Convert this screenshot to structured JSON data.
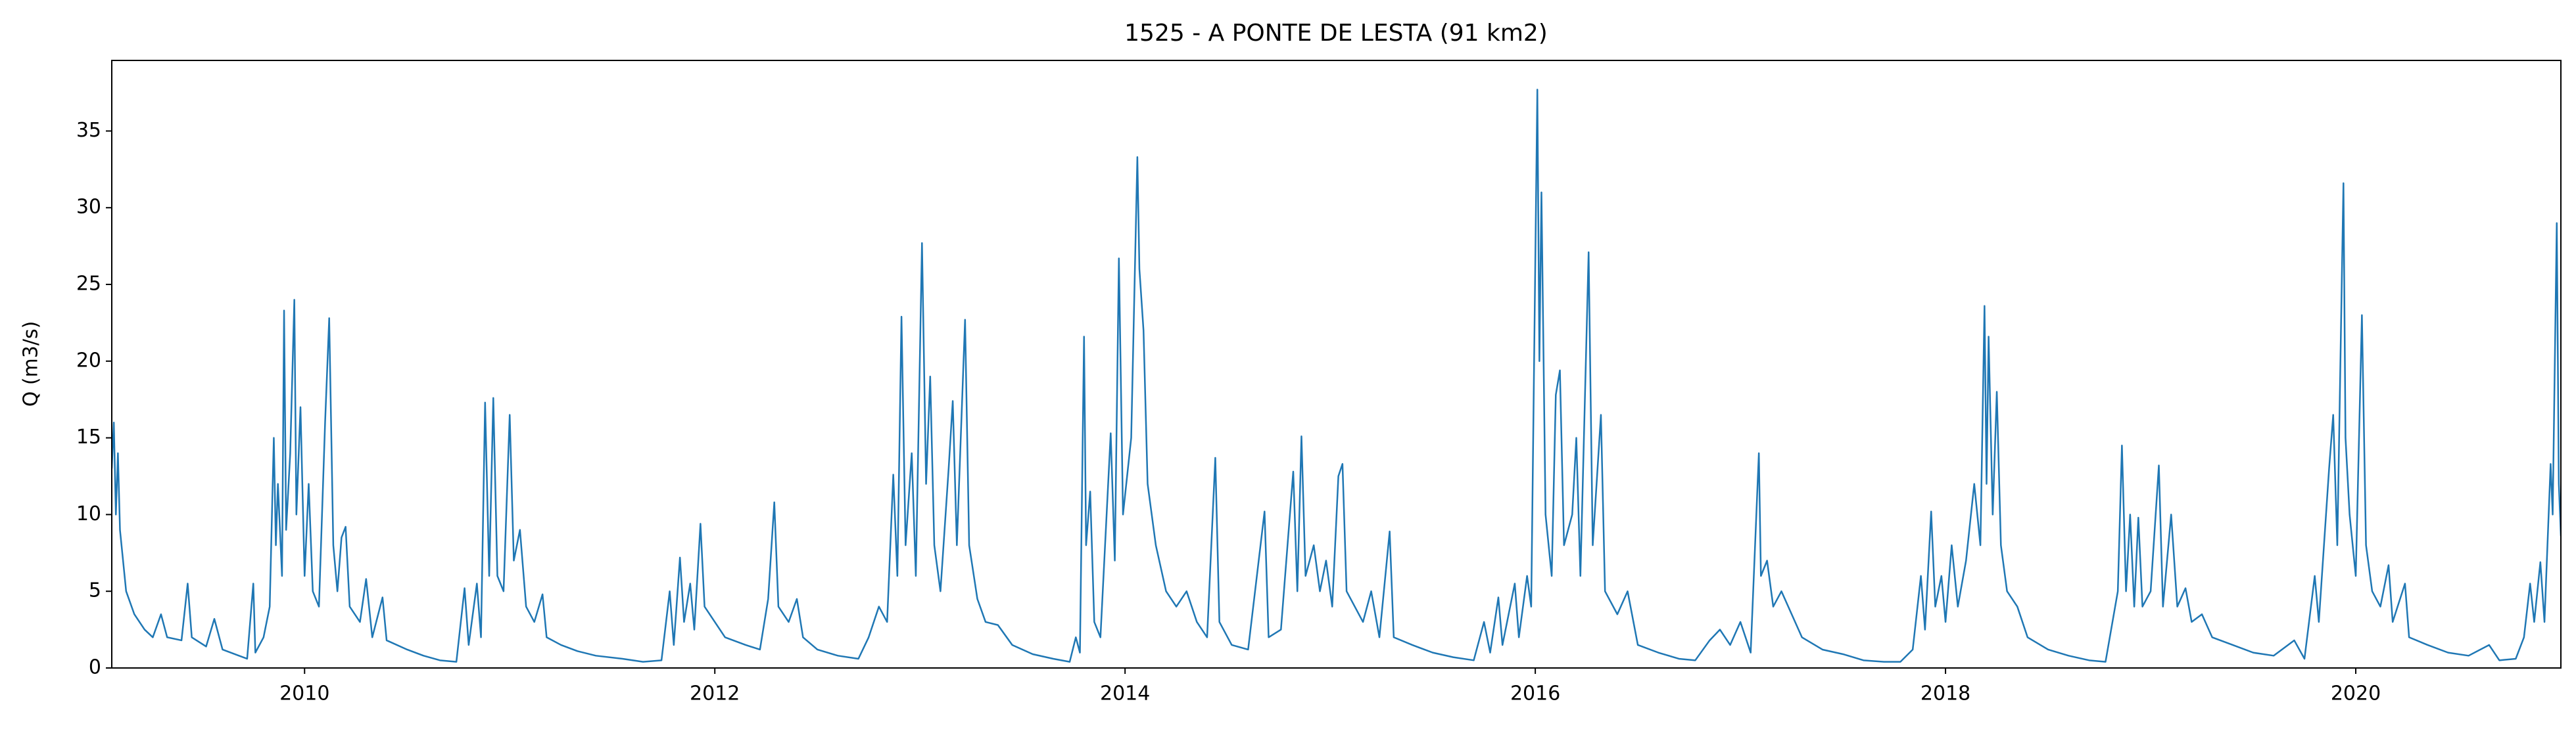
{
  "chart_data": {
    "type": "line",
    "title": "1525 - A PONTE DE LESTA (91 km2)",
    "y_label": "Q (m3/s)",
    "xlim": [
      2009.06,
      2021.0
    ],
    "xticks": [
      2010,
      2012,
      2014,
      2016,
      2018,
      2020
    ],
    "ylim": [
      0,
      39.6
    ],
    "yticks": [
      0,
      5,
      10,
      15,
      20,
      25,
      30,
      35
    ],
    "grid": false,
    "series": [
      {
        "color": "#1f77b4",
        "x": [
          2009.06,
          2009.07,
          2009.08,
          2009.09,
          2009.1,
          2009.13,
          2009.17,
          2009.22,
          2009.26,
          2009.3,
          2009.33,
          2009.4,
          2009.43,
          2009.45,
          2009.52,
          2009.56,
          2009.6,
          2009.68,
          2009.72,
          2009.75,
          2009.76,
          2009.8,
          2009.83,
          2009.85,
          2009.86,
          2009.87,
          2009.89,
          2009.9,
          2009.91,
          2009.93,
          2009.95,
          2009.96,
          2009.98,
          2010.0,
          2010.02,
          2010.04,
          2010.07,
          2010.1,
          2010.12,
          2010.14,
          2010.16,
          2010.18,
          2010.2,
          2010.22,
          2010.27,
          2010.3,
          2010.33,
          2010.38,
          2010.4,
          2010.5,
          2010.58,
          2010.66,
          2010.74,
          2010.78,
          2010.8,
          2010.84,
          2010.86,
          2010.88,
          2010.9,
          2010.92,
          2010.94,
          2010.97,
          2011.0,
          2011.02,
          2011.05,
          2011.08,
          2011.12,
          2011.16,
          2011.18,
          2011.25,
          2011.33,
          2011.42,
          2011.55,
          2011.65,
          2011.74,
          2011.78,
          2011.8,
          2011.83,
          2011.85,
          2011.88,
          2011.9,
          2011.93,
          2011.95,
          2012.0,
          2012.05,
          2012.15,
          2012.22,
          2012.26,
          2012.29,
          2012.31,
          2012.36,
          2012.4,
          2012.43,
          2012.5,
          2012.6,
          2012.7,
          2012.75,
          2012.8,
          2012.84,
          2012.87,
          2012.89,
          2012.91,
          2012.93,
          2012.96,
          2012.98,
          2013.01,
          2013.03,
          2013.05,
          2013.07,
          2013.1,
          2013.14,
          2013.16,
          2013.18,
          2013.22,
          2013.24,
          2013.28,
          2013.32,
          2013.38,
          2013.45,
          2013.55,
          2013.65,
          2013.73,
          2013.76,
          2013.78,
          2013.8,
          2013.81,
          2013.83,
          2013.85,
          2013.88,
          2013.93,
          2013.95,
          2013.97,
          2013.99,
          2014.03,
          2014.06,
          2014.07,
          2014.09,
          2014.11,
          2014.15,
          2014.2,
          2014.25,
          2014.3,
          2014.35,
          2014.4,
          2014.44,
          2014.46,
          2014.52,
          2014.6,
          2014.68,
          2014.7,
          2014.76,
          2014.82,
          2014.84,
          2014.86,
          2014.88,
          2014.92,
          2014.95,
          2014.98,
          2015.01,
          2015.04,
          2015.06,
          2015.08,
          2015.12,
          2015.16,
          2015.2,
          2015.24,
          2015.29,
          2015.31,
          2015.4,
          2015.5,
          2015.6,
          2015.7,
          2015.75,
          2015.78,
          2015.82,
          2015.84,
          2015.9,
          2015.92,
          2015.96,
          2015.98,
          2016.01,
          2016.02,
          2016.03,
          2016.05,
          2016.08,
          2016.1,
          2016.12,
          2016.14,
          2016.18,
          2016.2,
          2016.22,
          2016.26,
          2016.28,
          2016.32,
          2016.34,
          2016.4,
          2016.45,
          2016.5,
          2016.6,
          2016.7,
          2016.78,
          2016.85,
          2016.9,
          2016.95,
          2017.0,
          2017.05,
          2017.09,
          2017.1,
          2017.13,
          2017.16,
          2017.2,
          2017.25,
          2017.3,
          2017.4,
          2017.5,
          2017.6,
          2017.7,
          2017.78,
          2017.84,
          2017.88,
          2017.9,
          2017.93,
          2017.95,
          2017.98,
          2018.0,
          2018.03,
          2018.06,
          2018.1,
          2018.14,
          2018.17,
          2018.19,
          2018.2,
          2018.21,
          2018.23,
          2018.25,
          2018.27,
          2018.3,
          2018.35,
          2018.4,
          2018.5,
          2018.6,
          2018.7,
          2018.78,
          2018.84,
          2018.86,
          2018.88,
          2018.9,
          2018.92,
          2018.94,
          2018.96,
          2019.0,
          2019.04,
          2019.06,
          2019.1,
          2019.13,
          2019.17,
          2019.2,
          2019.25,
          2019.3,
          2019.4,
          2019.5,
          2019.6,
          2019.7,
          2019.75,
          2019.8,
          2019.82,
          2019.87,
          2019.89,
          2019.91,
          2019.94,
          2019.95,
          2019.97,
          2020.0,
          2020.03,
          2020.05,
          2020.08,
          2020.12,
          2020.16,
          2020.18,
          2020.24,
          2020.26,
          2020.35,
          2020.45,
          2020.55,
          2020.65,
          2020.7,
          2020.78,
          2020.82,
          2020.85,
          2020.87,
          2020.9,
          2020.92,
          2020.95,
          2020.96,
          2020.98,
          2020.99,
          2021.0
        ],
        "values": [
          13,
          16,
          10,
          14,
          9,
          5,
          3.5,
          2.5,
          2,
          3.5,
          2,
          1.8,
          5.5,
          2,
          1.4,
          3.2,
          1.2,
          0.8,
          0.6,
          5.5,
          1,
          2,
          4,
          15,
          8,
          12,
          6,
          23.3,
          9,
          14,
          24,
          10,
          17,
          6,
          12,
          5,
          4,
          16,
          22.8,
          8,
          5,
          8.5,
          9.2,
          4,
          3,
          5.8,
          2,
          4.6,
          1.8,
          1.2,
          0.8,
          0.5,
          0.4,
          5.2,
          1.5,
          5.5,
          2,
          17.3,
          6,
          17.6,
          6,
          5,
          16.5,
          7,
          9,
          4,
          3,
          4.8,
          2,
          1.5,
          1.1,
          0.8,
          0.6,
          0.4,
          0.5,
          5,
          1.5,
          7.2,
          3,
          5.5,
          2.5,
          9.4,
          4,
          3,
          2,
          1.5,
          1.2,
          4.5,
          10.8,
          4,
          3,
          4.5,
          2,
          1.2,
          0.8,
          0.6,
          2,
          4,
          3,
          12.6,
          6,
          22.9,
          8,
          14,
          6,
          27.7,
          12,
          19,
          8,
          5,
          13,
          17.4,
          8,
          22.7,
          8,
          4.5,
          3,
          2.8,
          1.5,
          0.9,
          0.6,
          0.4,
          2,
          1,
          21.6,
          8,
          11.5,
          3,
          2,
          15.3,
          7,
          26.7,
          10,
          15,
          33.3,
          26,
          22,
          12,
          8,
          5,
          4,
          5,
          3,
          2,
          13.7,
          3,
          1.5,
          1.2,
          10.2,
          2,
          2.5,
          12.8,
          5,
          15.1,
          6,
          8,
          5,
          7,
          4,
          12.5,
          13.3,
          5,
          4,
          3,
          5,
          2,
          8.9,
          2,
          1.5,
          1,
          0.7,
          0.5,
          3,
          1,
          4.6,
          1.5,
          5.5,
          2,
          6,
          4,
          37.7,
          20,
          31,
          10,
          6,
          17.8,
          19.4,
          8,
          10,
          15,
          6,
          27.1,
          8,
          16.5,
          5,
          3.5,
          5,
          1.5,
          1,
          0.6,
          0.5,
          1.8,
          2.5,
          1.5,
          3,
          1,
          14,
          6,
          7,
          4,
          5,
          3.5,
          2,
          1.2,
          0.9,
          0.5,
          0.4,
          0.4,
          1.2,
          6,
          2.5,
          10.2,
          4,
          6,
          3,
          8,
          4,
          7,
          12,
          8,
          23.6,
          12,
          21.6,
          10,
          18,
          8,
          5,
          4,
          2,
          1.2,
          0.8,
          0.5,
          0.4,
          5,
          14.5,
          5,
          10,
          4,
          9.8,
          4,
          5,
          13.2,
          4,
          10,
          4,
          5.2,
          3,
          3.5,
          2,
          1.5,
          1,
          0.8,
          1.8,
          0.6,
          6,
          3,
          13,
          16.5,
          8,
          31.6,
          15,
          10,
          6,
          23,
          8,
          5,
          4,
          6.7,
          3,
          5.5,
          2,
          1.5,
          1,
          0.8,
          1.5,
          0.5,
          0.6,
          2,
          5.5,
          3,
          6.9,
          3,
          13.3,
          10,
          29,
          12,
          8.6
        ]
      }
    ]
  }
}
